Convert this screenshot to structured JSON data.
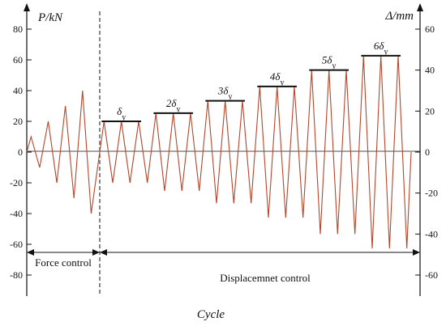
{
  "chart_data": {
    "type": "line",
    "ylabel_left": "P/kN",
    "ylabel_right": "Δ/mm",
    "xlabel": "Cycle",
    "left_ylim": [
      -80,
      80
    ],
    "right_ylim": [
      -60,
      60
    ],
    "left_ticks": [
      "80",
      "60",
      "40",
      "20",
      "0",
      "-20",
      "-40",
      "-60",
      "-80"
    ],
    "right_ticks": [
      "60",
      "40",
      "20",
      "0",
      "-20",
      "-40",
      "-60"
    ],
    "grid": false,
    "series": [
      {
        "phase": "Force control",
        "unit": "kN",
        "peaks": [
          10,
          -10,
          20,
          -20,
          30,
          -30,
          40,
          -40
        ]
      },
      {
        "phase": "Displacemnet control",
        "unit": "mm",
        "peaks": [
          15,
          -15,
          15,
          -15,
          15,
          -15,
          19,
          -19,
          19,
          -19,
          19,
          -19,
          25,
          -25,
          25,
          -25,
          25,
          -25,
          32,
          -32,
          32,
          -32,
          32,
          -32,
          40,
          -40,
          40,
          -40,
          40,
          -40,
          47,
          -47,
          47,
          -47,
          47,
          -47
        ]
      }
    ],
    "level_labels": [
      {
        "base": "δ",
        "sub": "y",
        "value": 15
      },
      {
        "base": "2δ",
        "sub": "y",
        "value": 19
      },
      {
        "base": "3δ",
        "sub": "y",
        "value": 25
      },
      {
        "base": "4δ",
        "sub": "y",
        "value": 32
      },
      {
        "base": "5δ",
        "sub": "y",
        "value": 40
      },
      {
        "base": "6δ",
        "sub": "y",
        "value": 47
      }
    ],
    "phase_labels": {
      "force": "Force control",
      "displacement": "Displacemnet control"
    },
    "colors": {
      "line": "#b5462a",
      "axis": "#111111"
    }
  }
}
